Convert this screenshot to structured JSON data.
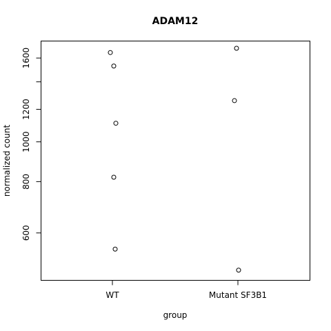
{
  "chart_data": {
    "type": "scatter",
    "title": "ADAM12",
    "xlabel": "group",
    "ylabel": "normalized count",
    "categories": [
      "WT",
      "Mutant SF3B1"
    ],
    "y_scale": "log",
    "ylim": [
      460,
      1760
    ],
    "y_ticks": [
      600,
      800,
      1000,
      1200,
      1600
    ],
    "y_tick_labels": [
      "600",
      "800",
      "1000",
      "1200",
      "1600"
    ],
    "grid": false,
    "series": [
      {
        "points": [
          {
            "group": "WT",
            "jitter": -0.03,
            "y": 1650
          },
          {
            "group": "WT",
            "jitter": 0.02,
            "y": 1530
          },
          {
            "group": "WT",
            "jitter": 0.05,
            "y": 1110
          },
          {
            "group": "WT",
            "jitter": 0.02,
            "y": 820
          },
          {
            "group": "WT",
            "jitter": 0.04,
            "y": 548
          },
          {
            "group": "Mutant SF3B1",
            "jitter": -0.02,
            "y": 1690
          },
          {
            "group": "Mutant SF3B1",
            "jitter": -0.05,
            "y": 1260
          },
          {
            "group": "Mutant SF3B1",
            "jitter": 0.01,
            "y": 487
          }
        ]
      }
    ]
  }
}
